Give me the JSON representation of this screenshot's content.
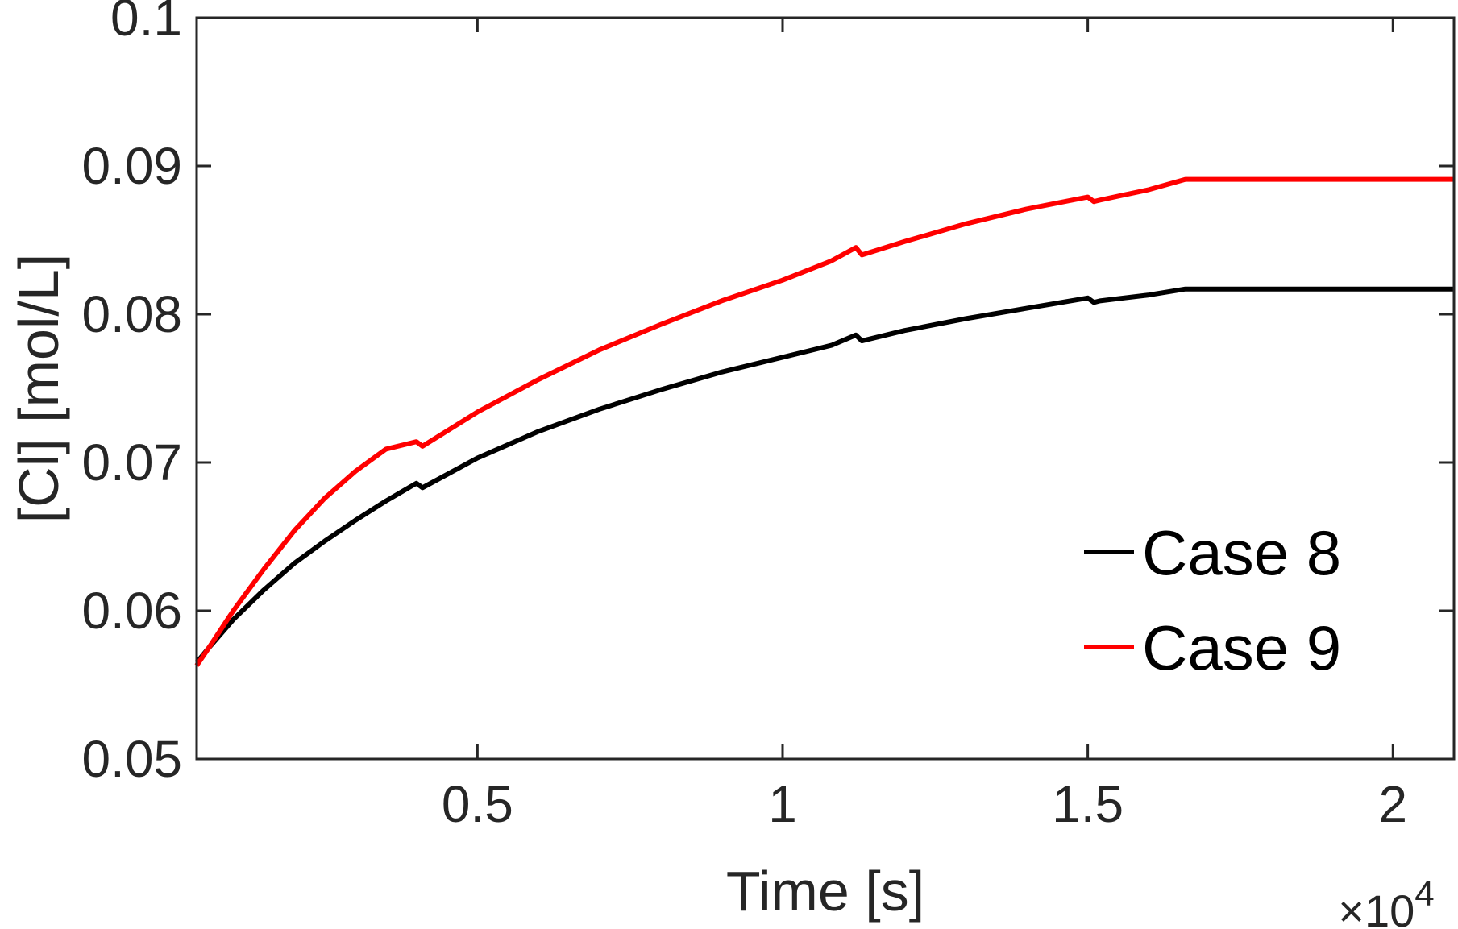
{
  "chart_data": {
    "type": "line",
    "title": "",
    "xlabel": "Time [s]",
    "ylabel": "[Cl] [mol/L]",
    "x_exponent_label": "×10",
    "x_exponent_power": "4",
    "xlim": [
      0.04,
      2.1
    ],
    "ylim": [
      0.05,
      0.1
    ],
    "x_ticks": [
      0.5,
      1,
      1.5,
      2
    ],
    "x_tick_labels": [
      "0.5",
      "1",
      "1.5",
      "2"
    ],
    "y_ticks": [
      0.05,
      0.06,
      0.07,
      0.08,
      0.09,
      0.1
    ],
    "y_tick_labels": [
      "0.05",
      "0.06",
      "0.07",
      "0.08",
      "0.09",
      "0.1"
    ],
    "grid": false,
    "legend_position": "bottom-right",
    "series": [
      {
        "name": "Case 8",
        "color": "#000000",
        "x": [
          0.04,
          0.06,
          0.1,
          0.15,
          0.2,
          0.25,
          0.3,
          0.35,
          0.4,
          0.41,
          0.5,
          0.6,
          0.7,
          0.8,
          0.9,
          1.0,
          1.08,
          1.12,
          1.13,
          1.2,
          1.3,
          1.4,
          1.5,
          1.51,
          1.52,
          1.6,
          1.66,
          1.7,
          1.8,
          1.9,
          2.0,
          2.1
        ],
        "y": [
          0.0565,
          0.0575,
          0.0594,
          0.0614,
          0.0632,
          0.0647,
          0.0661,
          0.0674,
          0.0686,
          0.0683,
          0.0703,
          0.0721,
          0.0736,
          0.0749,
          0.0761,
          0.0771,
          0.0779,
          0.0786,
          0.0782,
          0.0789,
          0.0797,
          0.0804,
          0.0811,
          0.0808,
          0.0809,
          0.0813,
          0.0817,
          0.0817,
          0.0817,
          0.0817,
          0.0817,
          0.0817
        ]
      },
      {
        "name": "Case 9",
        "color": "#ff0000",
        "x": [
          0.04,
          0.06,
          0.1,
          0.15,
          0.2,
          0.25,
          0.3,
          0.35,
          0.4,
          0.41,
          0.5,
          0.6,
          0.7,
          0.8,
          0.9,
          1.0,
          1.08,
          1.12,
          1.13,
          1.2,
          1.3,
          1.4,
          1.5,
          1.51,
          1.52,
          1.6,
          1.66,
          1.7,
          1.8,
          1.9,
          2.0,
          2.1
        ],
        "y": [
          0.0563,
          0.0575,
          0.06,
          0.0628,
          0.0654,
          0.0676,
          0.0694,
          0.0709,
          0.0714,
          0.0711,
          0.0734,
          0.0756,
          0.0776,
          0.0793,
          0.0809,
          0.0823,
          0.0836,
          0.0845,
          0.084,
          0.0849,
          0.0861,
          0.0871,
          0.0879,
          0.0876,
          0.0877,
          0.0884,
          0.0891,
          0.0891,
          0.0891,
          0.0891,
          0.0891,
          0.0891
        ]
      }
    ]
  }
}
